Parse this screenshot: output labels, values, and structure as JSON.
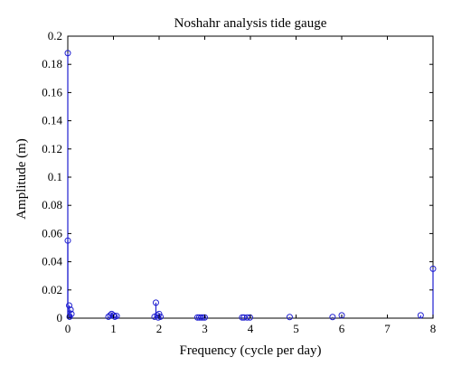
{
  "chart_data": {
    "type": "scatter",
    "title": "Noshahr analysis tide gauge",
    "xlabel": "Frequency (cycle per day)",
    "ylabel": "Amplitude (m)",
    "xlim": [
      0,
      8
    ],
    "ylim": [
      0,
      0.2
    ],
    "xticks": [
      "0",
      "1",
      "2",
      "3",
      "4",
      "5",
      "6",
      "7",
      "8"
    ],
    "yticks": [
      "0",
      "0.02",
      "0.04",
      "0.06",
      "0.08",
      "0.1",
      "0.12",
      "0.14",
      "0.16",
      "0.18",
      "0.2"
    ],
    "grid": false,
    "legend": "none",
    "marker": "open-circle-stem",
    "color": "#1f1fd0",
    "points": [
      {
        "x": 0.0,
        "y": 0.188
      },
      {
        "x": 0.0,
        "y": 0.055
      },
      {
        "x": 0.03,
        "y": 0.009
      },
      {
        "x": 0.06,
        "y": 0.006
      },
      {
        "x": 0.08,
        "y": 0.003
      },
      {
        "x": 0.04,
        "y": 0.001
      },
      {
        "x": 0.89,
        "y": 0.001
      },
      {
        "x": 0.93,
        "y": 0.002
      },
      {
        "x": 0.96,
        "y": 0.003
      },
      {
        "x": 1.0,
        "y": 0.002
      },
      {
        "x": 1.03,
        "y": 0.001
      },
      {
        "x": 1.07,
        "y": 0.0015
      },
      {
        "x": 1.93,
        "y": 0.011
      },
      {
        "x": 1.9,
        "y": 0.001
      },
      {
        "x": 1.96,
        "y": 0.002
      },
      {
        "x": 2.0,
        "y": 0.003
      },
      {
        "x": 2.03,
        "y": 0.001
      },
      {
        "x": 1.98,
        "y": 0.0005
      },
      {
        "x": 2.84,
        "y": 0.0005
      },
      {
        "x": 2.88,
        "y": 0.0005
      },
      {
        "x": 2.92,
        "y": 0.0005
      },
      {
        "x": 2.96,
        "y": 0.0005
      },
      {
        "x": 3.0,
        "y": 0.0005
      },
      {
        "x": 3.82,
        "y": 0.0005
      },
      {
        "x": 3.86,
        "y": 0.0005
      },
      {
        "x": 3.93,
        "y": 0.0005
      },
      {
        "x": 3.99,
        "y": 0.0005
      },
      {
        "x": 4.86,
        "y": 0.0008
      },
      {
        "x": 5.8,
        "y": 0.0008
      },
      {
        "x": 6.0,
        "y": 0.002
      },
      {
        "x": 7.73,
        "y": 0.002
      },
      {
        "x": 8.0,
        "y": 0.035
      }
    ]
  }
}
